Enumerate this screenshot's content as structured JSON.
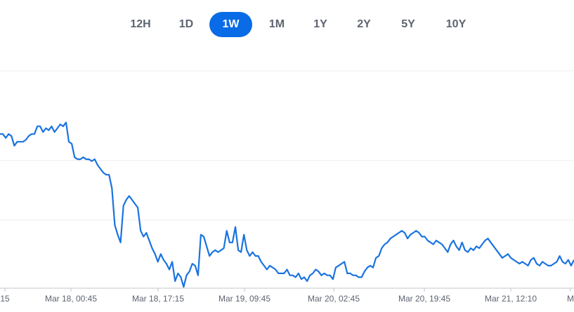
{
  "time_range": {
    "options": [
      "12H",
      "1D",
      "1W",
      "1M",
      "1Y",
      "2Y",
      "5Y",
      "10Y"
    ],
    "selected": "1W"
  },
  "colors": {
    "accent": "#0a6be6",
    "line": "#1a73e0",
    "grid": "#ececec",
    "axis": "#bfc4cc",
    "label": "#5d6470"
  },
  "chart_data": {
    "type": "line",
    "grid": true,
    "xlabel": "",
    "ylabel": "",
    "x_tick_labels": [
      "Mar 18, 00:45",
      "Mar 18, 17:15",
      "Mar 19, 09:45",
      "Mar 20, 02:45",
      "Mar 20, 19:45",
      "Mar 21, 12:10"
    ],
    "edge_tick_labels": {
      "left": "15",
      "right": "M"
    },
    "ylim": [
      0,
      100
    ],
    "values": [
      80,
      80,
      78,
      80,
      79,
      74,
      76,
      76,
      76,
      77,
      79,
      80,
      80,
      84,
      84,
      81,
      83,
      82,
      84,
      81,
      83,
      85,
      84,
      86,
      76,
      75,
      68,
      67,
      67,
      68,
      67,
      67,
      66,
      67,
      64,
      62,
      60,
      59,
      59,
      52,
      33,
      28,
      24,
      43,
      46,
      48,
      46,
      44,
      42,
      30,
      27,
      29,
      25,
      21,
      18,
      14,
      18,
      15,
      13,
      10,
      14,
      4,
      8,
      6,
      1,
      7,
      9,
      13,
      12,
      7,
      28,
      27,
      22,
      17,
      19,
      20,
      19,
      20,
      21,
      30,
      24,
      24,
      32,
      20,
      19,
      28,
      20,
      17,
      19,
      17,
      17,
      14,
      12,
      10,
      12,
      11,
      10,
      8,
      8,
      8,
      10,
      7,
      7,
      6,
      8,
      5,
      6,
      4,
      7,
      8,
      10,
      9,
      7,
      8,
      7,
      7,
      5,
      11,
      12,
      13,
      14,
      8,
      8,
      7,
      7,
      6,
      6,
      9,
      11,
      12,
      11,
      16,
      17,
      21,
      23,
      24,
      26,
      27,
      28,
      29,
      30,
      29,
      26,
      28,
      29,
      30,
      29,
      27,
      27,
      25,
      24,
      23,
      25,
      24,
      23,
      21,
      19,
      23,
      25,
      22,
      20,
      24,
      20,
      19,
      21,
      20,
      22,
      21,
      23,
      25,
      26,
      24,
      22,
      20,
      18,
      16,
      17,
      18,
      16,
      15,
      14,
      13,
      14,
      13,
      12,
      15,
      16,
      13,
      12,
      14,
      13,
      12,
      12,
      13,
      14,
      17,
      14,
      13,
      15,
      12,
      15
    ]
  }
}
